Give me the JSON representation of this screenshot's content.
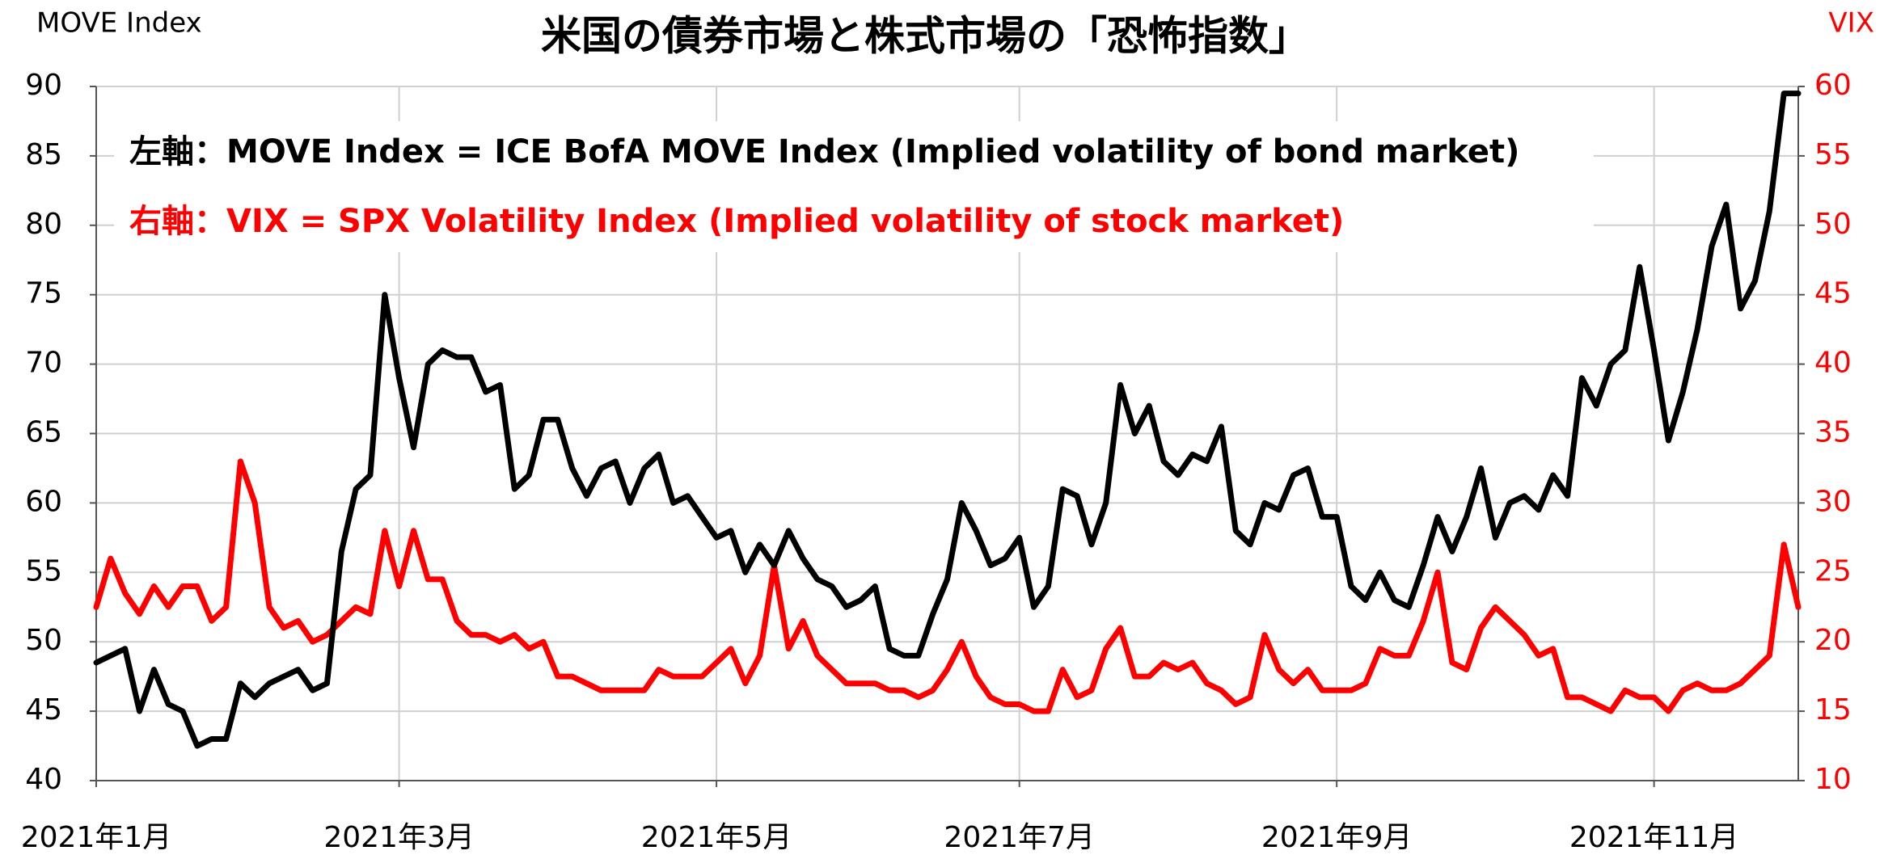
{
  "chart_data": {
    "type": "line",
    "title": "米国の債券市場と株式市場の「恐怖指数」",
    "y_label": "MOVE Index",
    "y2_label": "VIX",
    "annotations": [
      {
        "text": "左軸：MOVE Index = ICE BofA MOVE Index (Implied volatility of bond market)",
        "color": "#000000"
      },
      {
        "text": "右軸：VIX = SPX Volatility Index (Implied volatility of stock market)",
        "color": "#ff0000"
      }
    ],
    "categories": [
      "2021年1月",
      null,
      null,
      null,
      null,
      null,
      null,
      null,
      null,
      null,
      null,
      null,
      null,
      null,
      null,
      null,
      null,
      null,
      null,
      null,
      null,
      "2021年3月",
      null,
      null,
      null,
      null,
      null,
      null,
      null,
      null,
      null,
      null,
      null,
      null,
      null,
      null,
      null,
      null,
      null,
      null,
      null,
      null,
      null,
      "2021年5月",
      null,
      null,
      null,
      null,
      null,
      null,
      null,
      null,
      null,
      null,
      null,
      null,
      null,
      null,
      null,
      null,
      null,
      null,
      null,
      null,
      "2021年7月",
      null,
      null,
      null,
      null,
      null,
      null,
      null,
      null,
      null,
      null,
      null,
      null,
      null,
      null,
      null,
      null,
      null,
      null,
      null,
      null,
      null,
      "2021年9月",
      null,
      null,
      null,
      null,
      null,
      null,
      null,
      null,
      null,
      null,
      null,
      null,
      null,
      null,
      null,
      null,
      null,
      null,
      null,
      null,
      null,
      "2021年11月",
      null,
      null,
      null,
      null,
      null,
      null,
      null,
      null,
      null,
      null
    ],
    "series": [
      {
        "color": "#000000",
        "axis": "y",
        "values": [
          48.5,
          49,
          49.5,
          45,
          48,
          45.5,
          45,
          42.5,
          43,
          43,
          47,
          46,
          47,
          47.5,
          48,
          46.5,
          47,
          56.5,
          61,
          62,
          75,
          69,
          64,
          70,
          71,
          70.5,
          70.5,
          68,
          68.5,
          61,
          62,
          66,
          66,
          62.5,
          60.5,
          62.5,
          63,
          60,
          62.5,
          63.5,
          60,
          60.5,
          59,
          57.5,
          58,
          55,
          57,
          55.5,
          58,
          56,
          54.5,
          54,
          52.5,
          53,
          54,
          49.5,
          49,
          49,
          52,
          54.5,
          60,
          58,
          55.5,
          56,
          57.5,
          52.5,
          54,
          61,
          60.5,
          57,
          60,
          68.5,
          65,
          67,
          63,
          62,
          63.5,
          63,
          65.5,
          58,
          57,
          60,
          59.5,
          62,
          62.5,
          59,
          59,
          54,
          53,
          55,
          53,
          52.5,
          55.5,
          59,
          56.5,
          59,
          62.5,
          57.5,
          60,
          60.5,
          59.5,
          62,
          60.5,
          69,
          67,
          70,
          71,
          77,
          71,
          64.5,
          68,
          72.5,
          78.5,
          81.5,
          74,
          76,
          81,
          89.5,
          89.5
        ]
      },
      {
        "color": "#ff0000",
        "axis": "y2",
        "values": [
          22.5,
          26,
          23.5,
          22,
          24,
          22.5,
          24,
          24,
          21.5,
          22.5,
          33,
          30,
          22.5,
          21,
          21.5,
          20,
          20.5,
          21.5,
          22.5,
          22,
          28,
          24,
          28,
          24.5,
          24.5,
          21.5,
          20.5,
          20.5,
          20,
          20.5,
          19.5,
          20,
          17.5,
          17.5,
          17,
          16.5,
          16.5,
          16.5,
          16.5,
          18,
          17.5,
          17.5,
          17.5,
          18.5,
          19.5,
          17,
          19,
          25.5,
          19.5,
          21.5,
          19,
          18,
          17,
          17,
          17,
          16.5,
          16.5,
          16,
          16.5,
          18,
          20,
          17.5,
          16,
          15.5,
          15.5,
          15,
          15,
          18,
          16,
          16.5,
          19.5,
          21,
          17.5,
          17.5,
          18.5,
          18,
          18.5,
          17,
          16.5,
          15.5,
          16,
          20.5,
          18,
          17,
          18,
          16.5,
          16.5,
          16.5,
          17,
          19.5,
          19,
          19,
          21.5,
          25,
          18.5,
          18,
          21,
          22.5,
          21.5,
          20.5,
          19,
          19.5,
          16,
          16,
          15.5,
          15,
          16.5,
          16,
          16,
          15,
          16.5,
          17,
          16.5,
          16.5,
          17,
          18,
          19,
          27,
          22.5
        ]
      }
    ],
    "ylim": [
      40,
      90
    ],
    "yticks": [
      40,
      45,
      50,
      55,
      60,
      65,
      70,
      75,
      80,
      85,
      90
    ],
    "y2lim": [
      10,
      60
    ],
    "y2ticks": [
      10,
      15,
      20,
      25,
      30,
      35,
      40,
      45,
      50,
      55,
      60
    ],
    "y2_color": "#ff0000",
    "grid": true
  }
}
